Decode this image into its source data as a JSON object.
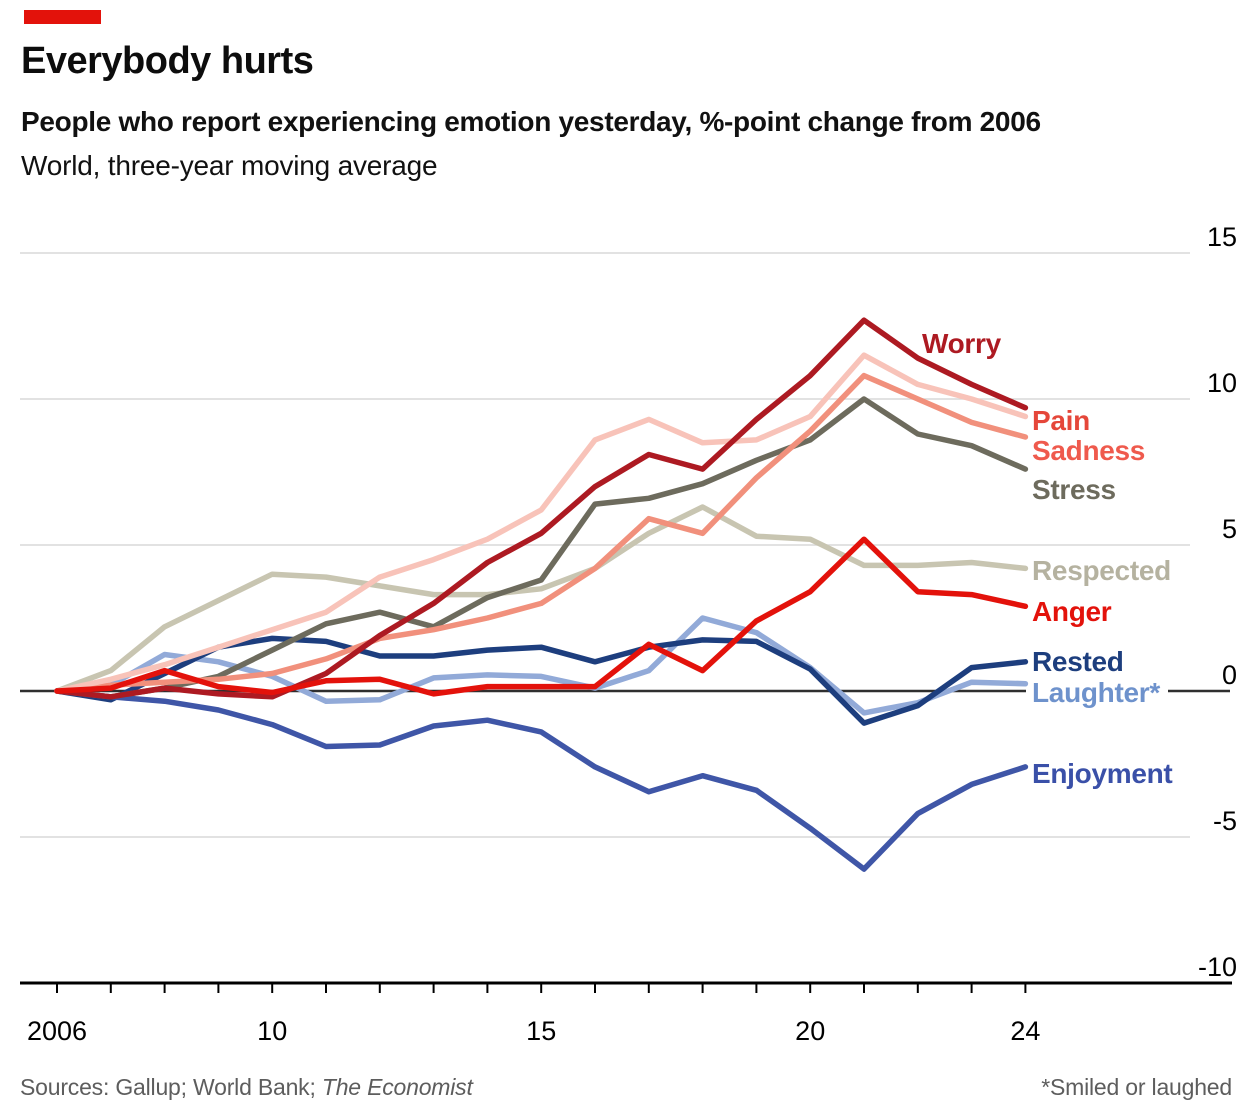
{
  "brand": {
    "tag_color": "#e3120b"
  },
  "header": {
    "title": "Everybody hurts",
    "subtitle_bold": "People who report experiencing emotion yesterday, %-point change from 2006",
    "subtitle_light": "World, three-year moving average"
  },
  "footer": {
    "sources_prefix": "Sources: Gallup; World Bank; ",
    "sources_italic": "The Economist",
    "footnote": "*Smiled or laughed"
  },
  "chart_data": {
    "type": "line",
    "title": "Everybody hurts",
    "x": [
      2006,
      2007,
      2008,
      2009,
      2010,
      2011,
      2012,
      2013,
      2014,
      2015,
      2016,
      2017,
      2018,
      2019,
      2020,
      2021,
      2022,
      2023,
      2024
    ],
    "x_axis_labels": [
      {
        "year": 2006,
        "text": "2006"
      },
      {
        "year": 2010,
        "text": "10"
      },
      {
        "year": 2015,
        "text": "15"
      },
      {
        "year": 2020,
        "text": "20"
      },
      {
        "year": 2024,
        "text": "24"
      }
    ],
    "y_ticks": [
      15,
      10,
      5,
      0,
      -5,
      -10
    ],
    "ylim": [
      -10,
      15
    ],
    "xlabel": "",
    "ylabel": "%-point change from 2006",
    "grid": true,
    "legend_position": "right-of-lines",
    "series": [
      {
        "name": "Worry",
        "label": "Worry",
        "color": "#ad1a22",
        "label_color": "#ad1a22",
        "values": [
          0,
          -0.2,
          0.1,
          -0.1,
          -0.2,
          0.6,
          1.9,
          3.0,
          4.4,
          5.4,
          7.0,
          8.1,
          7.6,
          9.3,
          10.8,
          12.7,
          11.4,
          10.5,
          9.7
        ]
      },
      {
        "name": "Pain",
        "label": "Pain",
        "color": "#f8c3b9",
        "label_color": "#e5473a",
        "values": [
          0,
          0.4,
          0.9,
          1.5,
          2.1,
          2.7,
          3.9,
          4.5,
          5.2,
          6.2,
          8.6,
          9.3,
          8.5,
          8.6,
          9.4,
          11.5,
          10.5,
          10.0,
          9.4
        ]
      },
      {
        "name": "Sadness",
        "label": "Sadness",
        "color": "#f1907c",
        "label_color": "#ef5a4d",
        "values": [
          0,
          0.2,
          0.3,
          0.4,
          0.6,
          1.1,
          1.8,
          2.1,
          2.5,
          3.0,
          4.2,
          5.9,
          5.4,
          7.3,
          8.9,
          10.8,
          10.0,
          9.2,
          8.7
        ]
      },
      {
        "name": "Stress",
        "label": "Stress",
        "color": "#6d6b5d",
        "label_color": "#6d6b5d",
        "values": [
          0,
          -0.2,
          0.1,
          0.5,
          1.4,
          2.3,
          2.7,
          2.2,
          3.2,
          3.8,
          6.4,
          6.6,
          7.1,
          7.9,
          8.6,
          10.0,
          8.8,
          8.4,
          7.6
        ]
      },
      {
        "name": "Respected",
        "label": "Respected",
        "color": "#c8c5b1",
        "label_color": "#b5b2a0",
        "values": [
          0,
          0.7,
          2.2,
          3.1,
          4.0,
          3.9,
          3.6,
          3.3,
          3.3,
          3.5,
          4.2,
          5.4,
          6.3,
          5.3,
          5.2,
          4.3,
          4.3,
          4.4,
          4.2
        ]
      },
      {
        "name": "Anger",
        "label": "Anger",
        "color": "#e3120b",
        "label_color": "#e3120b",
        "values": [
          0,
          0.1,
          0.7,
          0.15,
          -0.05,
          0.35,
          0.4,
          -0.1,
          0.15,
          0.15,
          0.15,
          1.6,
          0.7,
          2.4,
          3.4,
          5.2,
          3.4,
          3.3,
          2.9
        ]
      },
      {
        "name": "Rested",
        "label": "Rested",
        "color": "#1d3e7e",
        "label_color": "#1d3e7e",
        "values": [
          0,
          -0.3,
          0.6,
          1.5,
          1.8,
          1.7,
          1.2,
          1.2,
          1.4,
          1.5,
          1.0,
          1.5,
          1.75,
          1.7,
          0.75,
          -1.1,
          -0.5,
          0.8,
          1.0
        ]
      },
      {
        "name": "Laughter",
        "label": "Laughter*",
        "color": "#92aad8",
        "label_color": "#6e92cc",
        "values": [
          0,
          0.2,
          1.25,
          1.0,
          0.5,
          -0.35,
          -0.3,
          0.45,
          0.55,
          0.5,
          0.1,
          0.7,
          2.5,
          2.0,
          0.8,
          -0.75,
          -0.4,
          0.3,
          0.25
        ]
      },
      {
        "name": "Enjoyment",
        "label": "Enjoyment",
        "color": "#3f56a7",
        "label_color": "#3a50a8",
        "values": [
          0,
          -0.2,
          -0.35,
          -0.65,
          -1.15,
          -1.9,
          -1.85,
          -1.2,
          -1.0,
          -1.4,
          -2.6,
          -3.45,
          -2.9,
          -3.4,
          -4.7,
          -6.1,
          -4.2,
          -3.2,
          -2.6
        ]
      }
    ]
  }
}
